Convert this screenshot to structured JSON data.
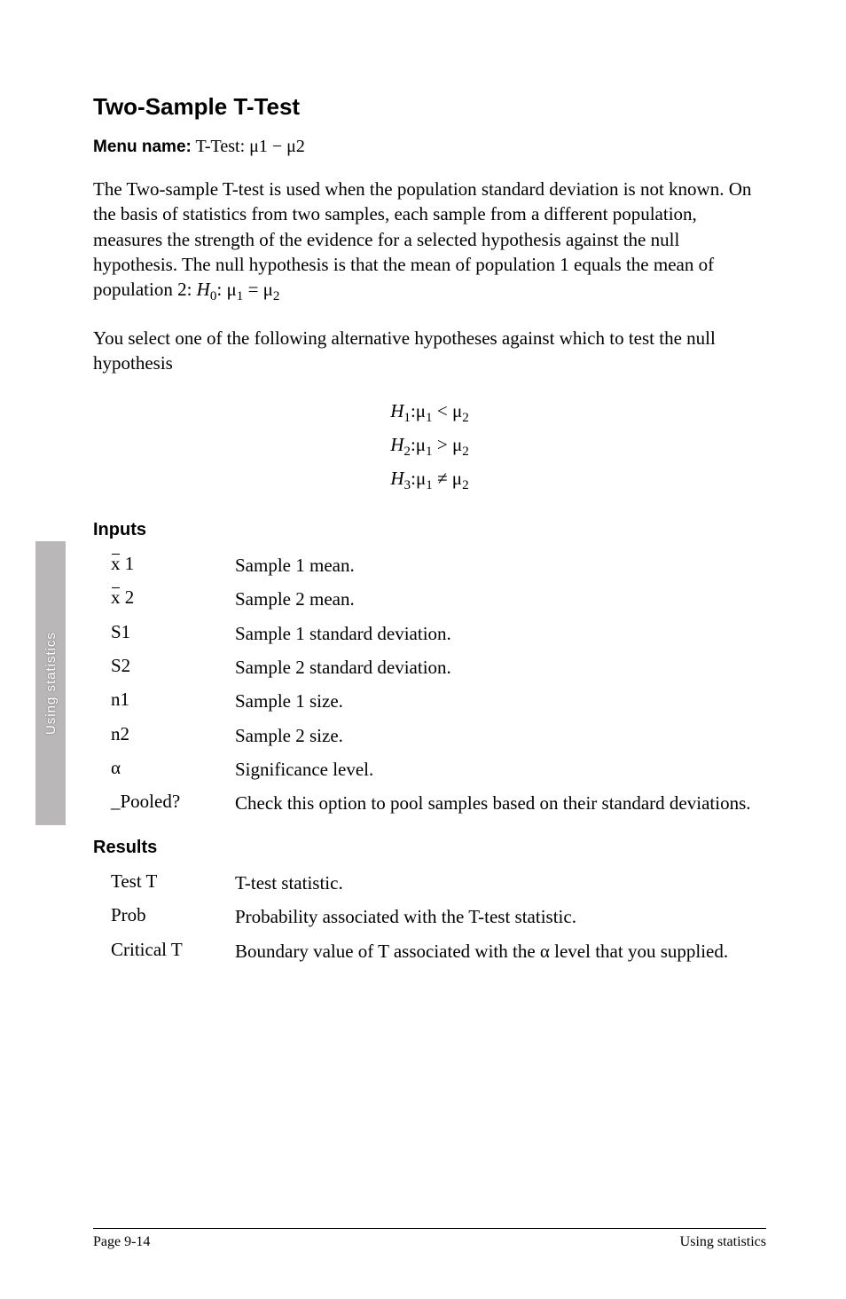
{
  "side_tab_label": "Using statistics",
  "title": "Two-Sample T-Test",
  "menu_label": "Menu name:",
  "menu_value": "T-Test: μ1 − μ2",
  "para1_html": "The Two-sample T-test is used when the population standard deviation is not known. On the basis of statistics from two samples, each sample from a different population, measures the strength of the evidence for a selected hypothesis against the null hypothesis. The null hypothesis is that the mean of population 1 equals the mean of population 2: <i>H</i><span class='sub1'>0</span>: μ<span class='sub1'>1</span> = μ<span class='sub1'>2</span>",
  "para2": "You select one of the following alternative hypotheses against which to test the null hypothesis",
  "hyp_lines": [
    "H<span class='sub1 roman'>1</span><span class='roman'>:μ</span><span class='sub1 roman'>1</span> <span class='roman'>&lt;</span> <span class='roman'>μ</span><span class='sub1 roman'>2</span>",
    "H<span class='sub1 roman'>2</span><span class='roman'>:μ</span><span class='sub1 roman'>1</span> <span class='roman'>&gt;</span> <span class='roman'>μ</span><span class='sub1 roman'>2</span>",
    "H<span class='sub1 roman'>3</span><span class='roman'>:μ</span><span class='sub1 roman'>1</span> <span class='roman'>≠</span> <span class='roman'>μ</span><span class='sub1 roman'>2</span>"
  ],
  "inputs_heading": "Inputs",
  "inputs": [
    {
      "term_html": "<span class='xbar'>x</span> 1",
      "desc": "Sample 1 mean."
    },
    {
      "term_html": "<span class='xbar'>x</span> 2",
      "desc": "Sample 2 mean."
    },
    {
      "term_html": "S1",
      "desc": "Sample 1 standard deviation."
    },
    {
      "term_html": "S2",
      "desc": "Sample 2 standard deviation."
    },
    {
      "term_html": "n1",
      "desc": "Sample 1 size."
    },
    {
      "term_html": "n2",
      "desc": "Sample 2 size."
    },
    {
      "term_html": "α",
      "desc": "Significance level."
    },
    {
      "term_html": "_Pooled?",
      "desc": "Check this option to pool samples based on their standard deviations."
    }
  ],
  "results_heading": "Results",
  "results": [
    {
      "term": "Test T",
      "desc": "T-test statistic."
    },
    {
      "term": "Prob",
      "desc": "Probability associated with the T-test statistic."
    },
    {
      "term": "Critical T",
      "desc": "Boundary value of T associated with the α level that you supplied."
    }
  ],
  "footer_left": "Page 9-14",
  "footer_right": "Using statistics"
}
